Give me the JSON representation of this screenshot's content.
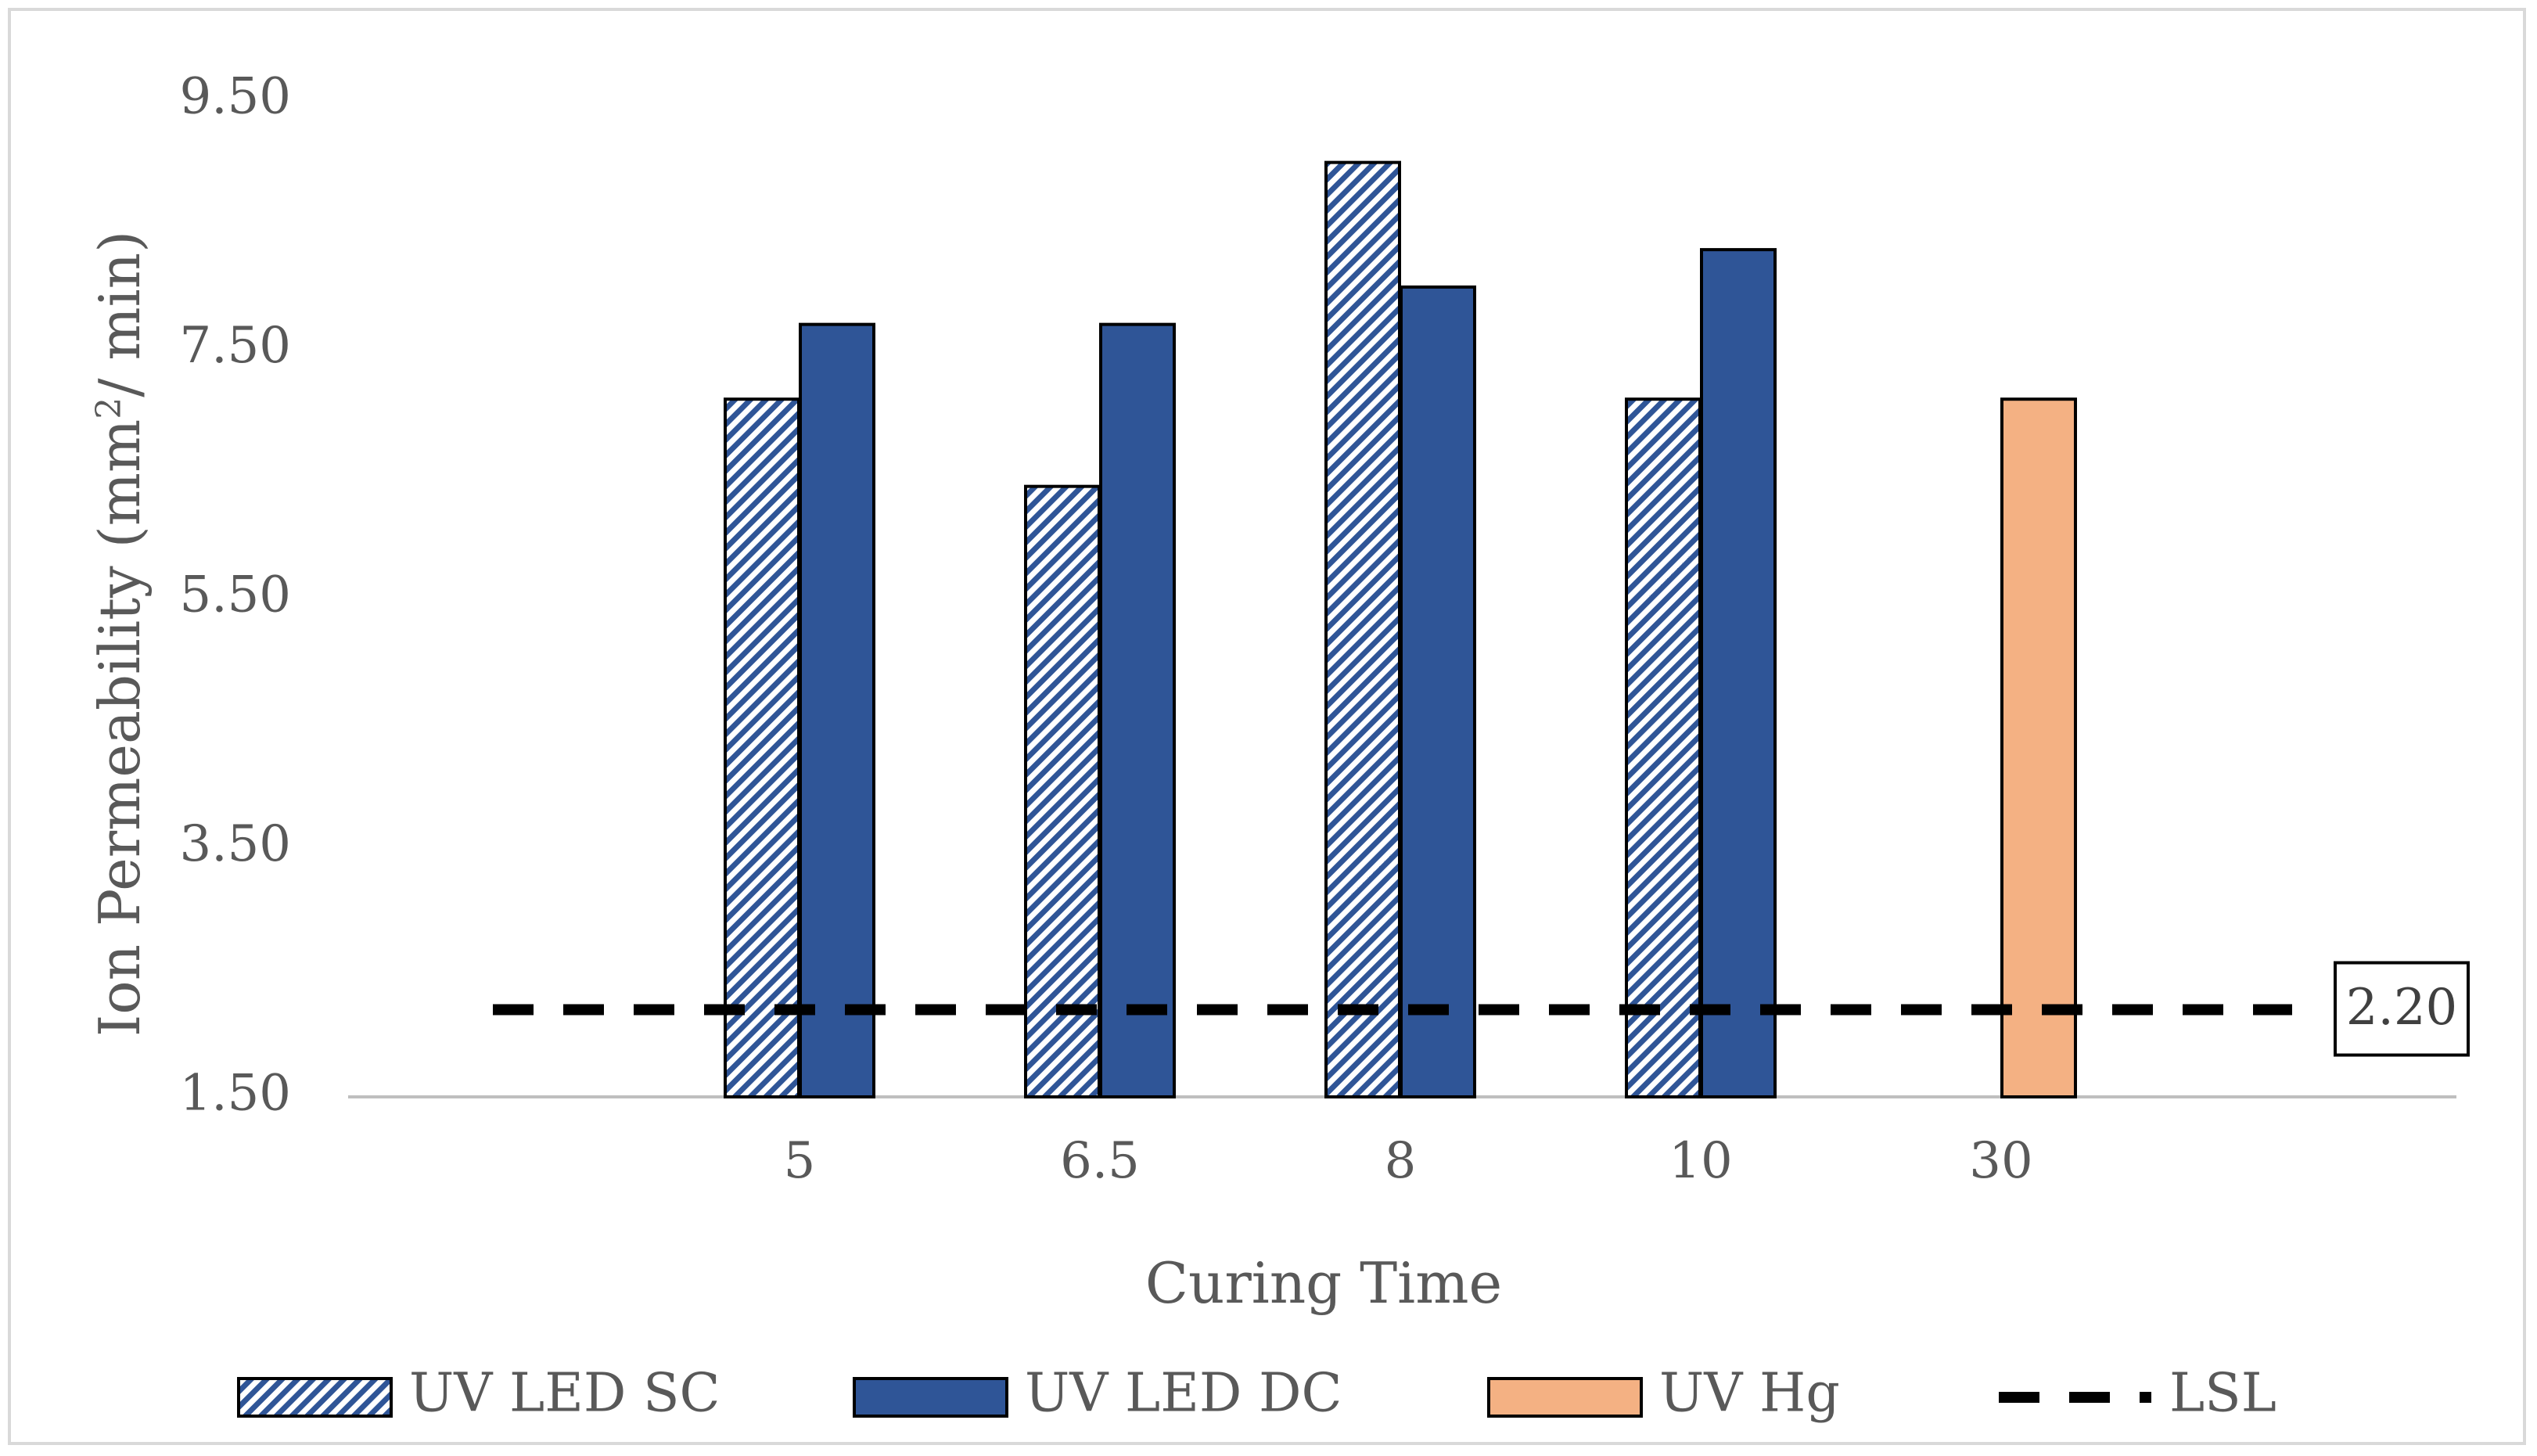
{
  "chart_data": {
    "type": "bar",
    "title": "",
    "xlabel": "Curing Time",
    "ylabel_main": "Ion Permeability (mm",
    "ylabel_sup": "2",
    "ylabel_tail": "/ min)",
    "categories": [
      "5",
      "6.5",
      "8",
      "10",
      "30"
    ],
    "ylim": [
      1.5,
      9.5
    ],
    "y_ticks": [
      "1.50",
      "3.50",
      "5.50",
      "7.50",
      "9.50"
    ],
    "y_tick_values": [
      1.5,
      3.5,
      5.5,
      7.5,
      9.5
    ],
    "grid": false,
    "series": [
      {
        "name": "UV LED SC",
        "values": [
          7.1,
          6.4,
          9.0,
          7.1,
          null
        ],
        "color": "#2F5597",
        "pattern": "diagonal-hatch"
      },
      {
        "name": "UV LED DC",
        "values": [
          7.7,
          7.7,
          8.0,
          8.3,
          null
        ],
        "color": "#2F5597",
        "pattern": "solid"
      },
      {
        "name": "UV Hg",
        "values": [
          null,
          null,
          null,
          null,
          7.1
        ],
        "color": "#F4B183",
        "pattern": "solid"
      }
    ],
    "reference_line": {
      "name": "LSL",
      "value": 2.2,
      "label": "2.20",
      "color": "#000000",
      "style": "dashed"
    },
    "legend_position": "bottom"
  }
}
